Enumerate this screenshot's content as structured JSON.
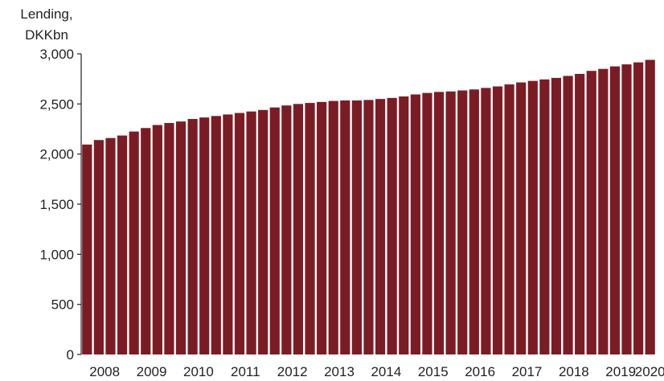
{
  "chart_data": {
    "type": "bar",
    "ylabel_lines": [
      "Lending,",
      "DKKbn"
    ],
    "ylim": [
      0,
      3000
    ],
    "yticks": [
      0,
      500,
      1000,
      1500,
      2000,
      2500,
      3000
    ],
    "ytick_labels": [
      "0",
      "500",
      "1,000",
      "1,500",
      "2,000",
      "2,500",
      "3,000"
    ],
    "xtick_labels": [
      "2008",
      "2009",
      "2010",
      "2011",
      "2012",
      "2013",
      "2014",
      "2015",
      "2016",
      "2017",
      "2018",
      "2019",
      "2020"
    ],
    "bars_per_year": 4,
    "values": [
      2095,
      2140,
      2160,
      2185,
      2225,
      2260,
      2290,
      2310,
      2325,
      2350,
      2365,
      2380,
      2395,
      2410,
      2425,
      2440,
      2465,
      2485,
      2500,
      2510,
      2520,
      2530,
      2535,
      2535,
      2540,
      2550,
      2560,
      2575,
      2595,
      2610,
      2620,
      2625,
      2635,
      2645,
      2660,
      2675,
      2695,
      2715,
      2730,
      2745,
      2760,
      2780,
      2800,
      2830,
      2850,
      2875,
      2895,
      2915,
      2940
    ],
    "bar_color": "#7b1c24",
    "grid": false,
    "legend": "none"
  }
}
